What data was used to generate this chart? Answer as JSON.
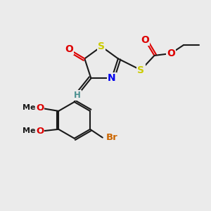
{
  "background_color": "#ebebeb",
  "bond_color": "#1a1a1a",
  "atom_colors": {
    "S": "#cccc00",
    "N": "#0000ee",
    "O": "#dd0000",
    "Br": "#cc6600",
    "H_label": "#4a9090",
    "C": "#1a1a1a"
  },
  "figsize": [
    3.0,
    3.0
  ],
  "dpi": 100,
  "xlim": [
    0,
    10
  ],
  "ylim": [
    0,
    10
  ]
}
